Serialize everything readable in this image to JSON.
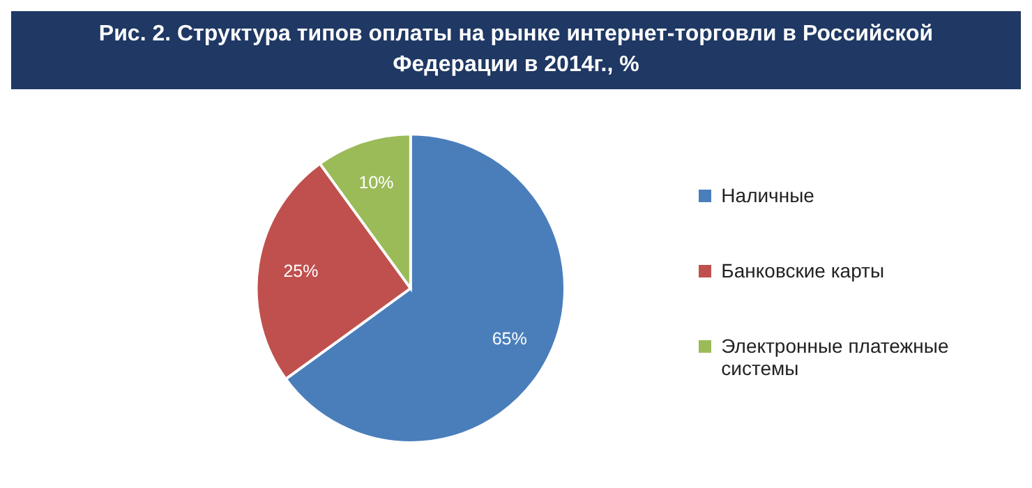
{
  "chart_data": {
    "type": "pie",
    "title": "Рис. 2. Структура типов оплаты на рынке интернет-торговли в Российской Федерации в 2014г., %",
    "categories": [
      "Наличные",
      "Банковские карты",
      "Электронные платежные системы"
    ],
    "values": [
      65,
      25,
      10
    ],
    "colors": [
      "#4a7ebb",
      "#c0504d",
      "#9bbb59"
    ],
    "value_labels": [
      "65%",
      "25%",
      "10%"
    ],
    "legend": "right"
  }
}
